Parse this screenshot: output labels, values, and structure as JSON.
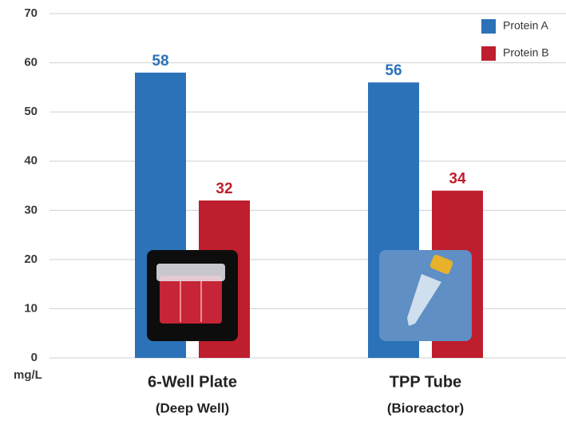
{
  "chart_data": {
    "type": "bar",
    "categories": [
      "6-Well Plate",
      "TPP Tube"
    ],
    "category_notes": [
      "(Deep Well)",
      "(Bioreactor)"
    ],
    "y_label": "mg/L",
    "series": [
      {
        "name": "Protein A",
        "color": "#2b72b8",
        "values": [
          58,
          56
        ]
      },
      {
        "name": "Protein B",
        "color": "#be1e2d",
        "values": [
          32,
          34
        ]
      }
    ],
    "ylim": [
      0,
      70
    ],
    "yticks": [
      0,
      10,
      20,
      30,
      40,
      50,
      60,
      70
    ],
    "grid": true,
    "legend": "top-right"
  }
}
